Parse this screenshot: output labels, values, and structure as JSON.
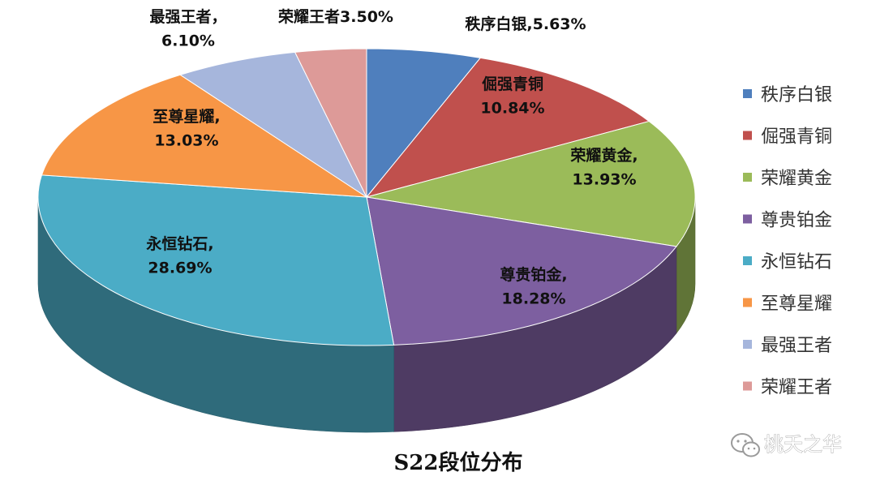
{
  "chart_data": {
    "type": "pie",
    "title": "S22段位分布",
    "legend_position": "right",
    "slices": [
      {
        "name": "秩序白银",
        "value": 5.63,
        "label": [
          "秩序白银,5.63%"
        ],
        "color": "#4f7fbd"
      },
      {
        "name": "倔强青铜",
        "value": 10.84,
        "label": [
          "倔强青铜",
          "10.84%"
        ],
        "color": "#c0504d"
      },
      {
        "name": "荣耀黄金",
        "value": 13.93,
        "label": [
          "荣耀黄金,",
          "13.93%"
        ],
        "color": "#9bbb59"
      },
      {
        "name": "尊贵铂金",
        "value": 18.28,
        "label": [
          "尊贵铂金,",
          "18.28%"
        ],
        "color": "#7d5fa0"
      },
      {
        "name": "永恒钻石",
        "value": 28.69,
        "label": [
          "永恒钻石,",
          "28.69%"
        ],
        "color": "#4bacc6"
      },
      {
        "name": "至尊星耀",
        "value": 13.03,
        "label": [
          "至尊星耀,",
          "13.03%"
        ],
        "color": "#f79646"
      },
      {
        "name": "最强王者",
        "value": 6.1,
        "label": [
          "最强王者，",
          "6.10%"
        ],
        "color": "#a6b6dc"
      },
      {
        "name": "荣耀王者",
        "value": 3.5,
        "label": [
          "荣耀王者3.50%"
        ],
        "color": "#dd9a98"
      }
    ]
  },
  "watermark": {
    "text": "桃夭之华",
    "icon": "wechat-icon"
  }
}
